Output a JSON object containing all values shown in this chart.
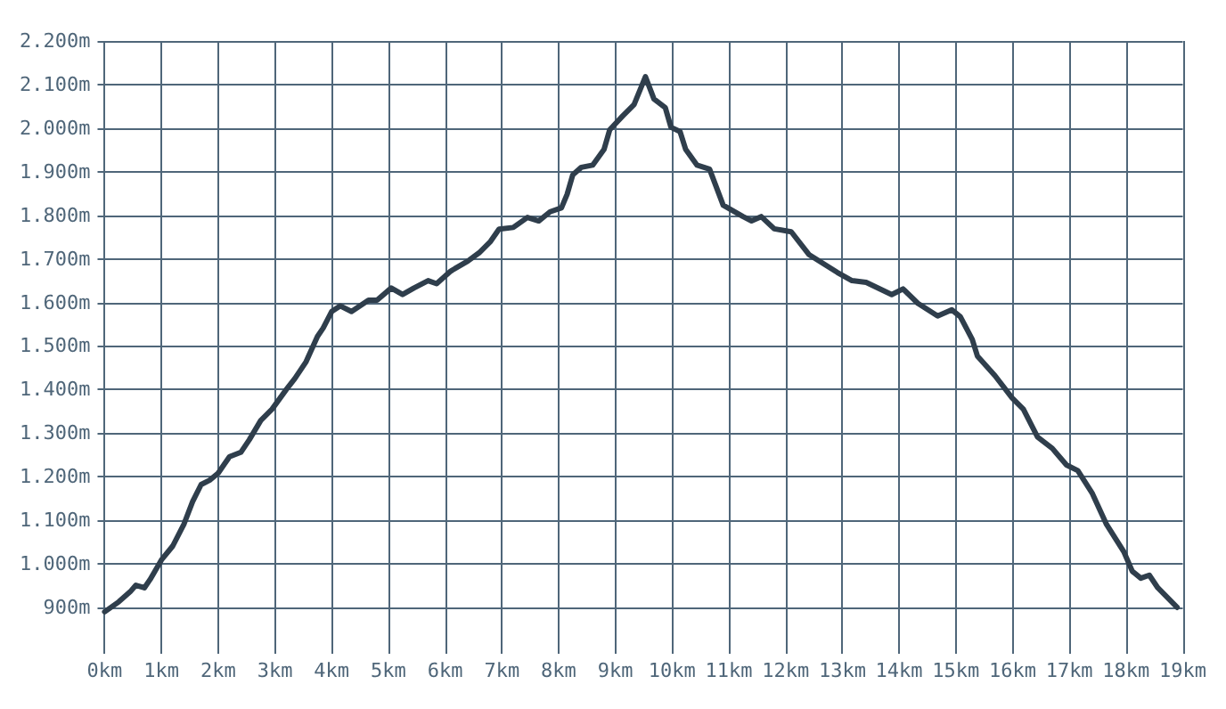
{
  "chart_data": {
    "type": "line",
    "x": [
      0,
      0.25,
      0.45,
      0.55,
      0.7,
      0.8,
      1.0,
      1.2,
      1.4,
      1.55,
      1.7,
      1.85,
      2.0,
      2.2,
      2.4,
      2.55,
      2.75,
      2.95,
      3.2,
      3.35,
      3.55,
      3.75,
      3.85,
      4.0,
      4.15,
      4.35,
      4.65,
      4.8,
      5.05,
      5.25,
      5.45,
      5.7,
      5.85,
      6.1,
      6.4,
      6.6,
      6.8,
      6.95,
      7.2,
      7.45,
      7.65,
      7.85,
      8.05,
      8.15,
      8.25,
      8.4,
      8.6,
      8.8,
      8.9,
      9.13,
      9.33,
      9.53,
      9.68,
      9.88,
      9.98,
      10.14,
      10.24,
      10.44,
      10.66,
      10.9,
      11.25,
      11.4,
      11.57,
      11.8,
      12.1,
      12.41,
      12.91,
      13.17,
      13.42,
      13.87,
      14.07,
      14.33,
      14.68,
      14.93,
      15.08,
      15.29,
      15.38,
      15.69,
      15.99,
      16.19,
      16.44,
      16.7,
      16.95,
      17.15,
      17.4,
      17.65,
      17.96,
      18.11,
      18.26,
      18.41,
      18.56,
      18.9
    ],
    "series": [
      {
        "color": "#2f3e4c",
        "values": [
          890,
          913,
          936,
          951,
          945,
          964,
          1009,
          1041,
          1092,
          1143,
          1182,
          1192,
          1208,
          1246,
          1256,
          1285,
          1329,
          1355,
          1400,
          1425,
          1464,
          1522,
          1541,
          1579,
          1592,
          1579,
          1605,
          1605,
          1633,
          1618,
          1633,
          1650,
          1643,
          1672,
          1695,
          1714,
          1740,
          1768,
          1772,
          1795,
          1787,
          1808,
          1817,
          1848,
          1893,
          1910,
          1915,
          1951,
          1996,
          2028,
          2054,
          2118,
          2067,
          2047,
          2002,
          1992,
          1951,
          1915,
          1906,
          1823,
          1797,
          1787,
          1797,
          1769,
          1762,
          1710,
          1669,
          1650,
          1646,
          1618,
          1631,
          1598,
          1569,
          1583,
          1567,
          1515,
          1477,
          1432,
          1381,
          1355,
          1291,
          1265,
          1227,
          1214,
          1163,
          1092,
          1028,
          983,
          967,
          974,
          945,
          900
        ]
      }
    ],
    "xlim": [
      0,
      19
    ],
    "ylim": [
      810,
      2200
    ],
    "xticks": [
      {
        "value": 0,
        "label": "0km"
      },
      {
        "value": 1,
        "label": "1km"
      },
      {
        "value": 2,
        "label": "2km"
      },
      {
        "value": 3,
        "label": "3km"
      },
      {
        "value": 4,
        "label": "4km"
      },
      {
        "value": 5,
        "label": "5km"
      },
      {
        "value": 6,
        "label": "6km"
      },
      {
        "value": 7,
        "label": "7km"
      },
      {
        "value": 8,
        "label": "8km"
      },
      {
        "value": 9,
        "label": "9km"
      },
      {
        "value": 10,
        "label": "10km"
      },
      {
        "value": 11,
        "label": "11km"
      },
      {
        "value": 12,
        "label": "12km"
      },
      {
        "value": 13,
        "label": "13km"
      },
      {
        "value": 14,
        "label": "14km"
      },
      {
        "value": 15,
        "label": "15km"
      },
      {
        "value": 16,
        "label": "16km"
      },
      {
        "value": 17,
        "label": "17km"
      },
      {
        "value": 18,
        "label": "18km"
      },
      {
        "value": 19,
        "label": "19km"
      }
    ],
    "yticks": [
      {
        "value": 900,
        "label": "900m"
      },
      {
        "value": 1000,
        "label": "1.000m"
      },
      {
        "value": 1100,
        "label": "1.100m"
      },
      {
        "value": 1200,
        "label": "1.200m"
      },
      {
        "value": 1300,
        "label": "1.300m"
      },
      {
        "value": 1400,
        "label": "1.400m"
      },
      {
        "value": 1500,
        "label": "1.500m"
      },
      {
        "value": 1600,
        "label": "1.600m"
      },
      {
        "value": 1700,
        "label": "1.700m"
      },
      {
        "value": 1800,
        "label": "1.800m"
      },
      {
        "value": 1900,
        "label": "1.900m"
      },
      {
        "value": 2000,
        "label": "2.000m"
      },
      {
        "value": 2100,
        "label": "2.100m"
      },
      {
        "value": 2200,
        "label": "2.200m"
      }
    ],
    "grid": true,
    "marker": "none",
    "line_style": "solid"
  }
}
